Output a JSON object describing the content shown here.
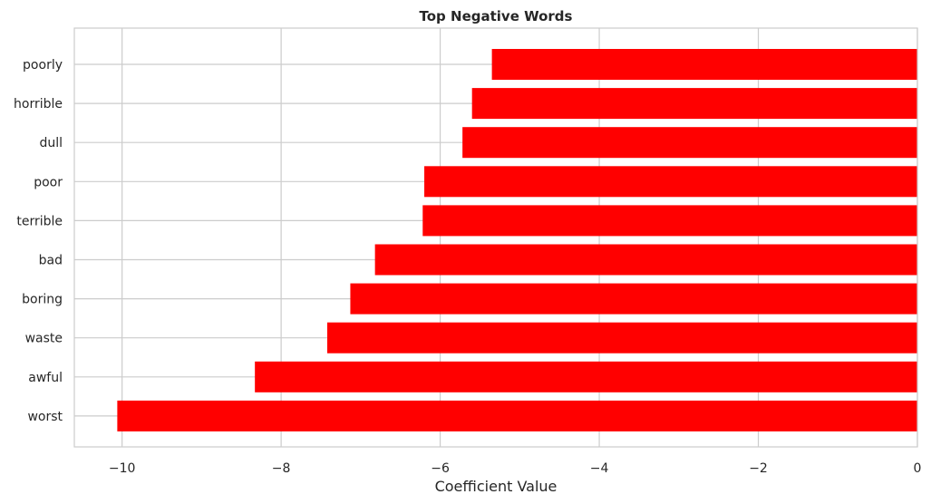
{
  "chart_data": {
    "type": "bar",
    "orientation": "horizontal",
    "title": "Top Negative Words",
    "xlabel": "Coefficient Value",
    "ylabel": "",
    "categories": [
      "poorly",
      "horrible",
      "dull",
      "poor",
      "terrible",
      "bad",
      "boring",
      "waste",
      "awful",
      "worst"
    ],
    "values": [
      -5.35,
      -5.6,
      -5.72,
      -6.2,
      -6.22,
      -6.82,
      -7.13,
      -7.42,
      -8.33,
      -10.06
    ],
    "xlim": [
      -10.6,
      0
    ],
    "xticks": [
      -10,
      -8,
      -6,
      -4,
      -2,
      0
    ],
    "xtick_labels": [
      "−10",
      "−8",
      "−6",
      "−4",
      "−2",
      "0"
    ],
    "grid": true,
    "bar_color": "#ff0000"
  }
}
